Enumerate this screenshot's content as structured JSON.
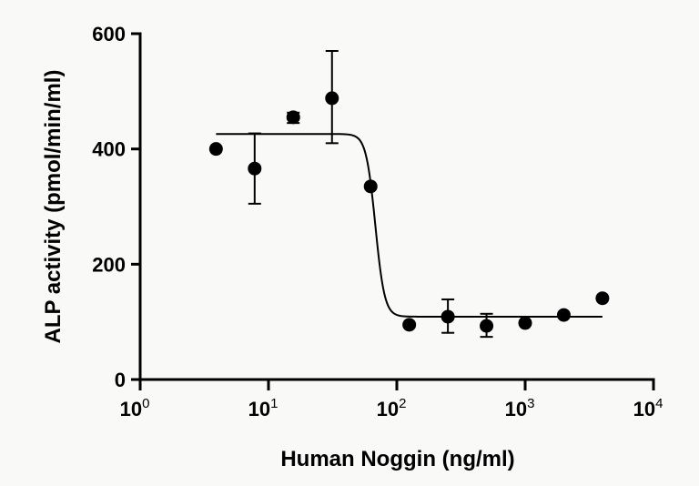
{
  "chart_data": {
    "type": "scatter",
    "title": "",
    "xlabel": "Human Noggin (ng/ml)",
    "ylabel": "ALP activity (pmol/min/ml)",
    "xscale": "log",
    "xlim": [
      1,
      10000
    ],
    "ylim": [
      0,
      600
    ],
    "xticks": [
      {
        "base": "10",
        "exp": "0"
      },
      {
        "base": "10",
        "exp": "1"
      },
      {
        "base": "10",
        "exp": "2"
      },
      {
        "base": "10",
        "exp": "3"
      },
      {
        "base": "10",
        "exp": "4"
      }
    ],
    "yticks": [
      "0",
      "200",
      "400",
      "600"
    ],
    "grid": false,
    "points": [
      {
        "x": 3.9,
        "y": 400
      },
      {
        "x": 7.8,
        "y": 366,
        "err_low": 305,
        "err_high": 427
      },
      {
        "x": 15.6,
        "y": 455,
        "err_low": 445,
        "err_high": 463
      },
      {
        "x": 31.25,
        "y": 488,
        "err_low": 410,
        "err_high": 570
      },
      {
        "x": 62.5,
        "y": 335
      },
      {
        "x": 125,
        "y": 95
      },
      {
        "x": 250,
        "y": 109,
        "err_low": 81,
        "err_high": 139
      },
      {
        "x": 500,
        "y": 93,
        "err_low": 74,
        "err_high": 114
      },
      {
        "x": 1000,
        "y": 98
      },
      {
        "x": 2000,
        "y": 112
      },
      {
        "x": 4000,
        "y": 141
      }
    ],
    "fit_curve": {
      "top": 426,
      "bottom": 109,
      "ic50": 68,
      "hill_slope": -12,
      "x_range": [
        3.9,
        4000
      ]
    },
    "color": "#000000"
  }
}
